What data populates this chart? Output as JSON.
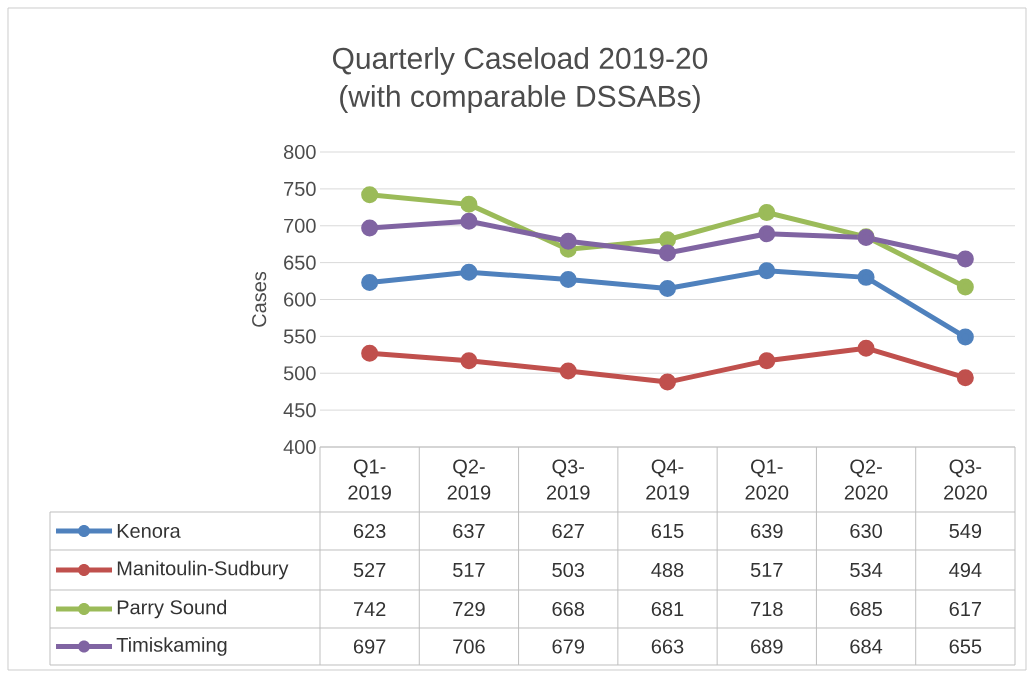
{
  "chart_data": {
    "type": "line",
    "title": "Quarterly Caseload 2019-20",
    "subtitle": "(with comparable DSSABs)",
    "ylabel": "Cases",
    "categories": [
      "Q1-2019",
      "Q2-2019",
      "Q3-2019",
      "Q4-2019",
      "Q1-2020",
      "Q2-2020",
      "Q3-2020"
    ],
    "series": [
      {
        "name": "Kenora",
        "color": "#4f81bd",
        "values": [
          623,
          637,
          627,
          615,
          639,
          630,
          549
        ]
      },
      {
        "name": "Manitoulin-Sudbury",
        "color": "#c0504d",
        "values": [
          527,
          517,
          503,
          488,
          517,
          534,
          494
        ]
      },
      {
        "name": "Parry Sound",
        "color": "#9bbb59",
        "values": [
          742,
          729,
          668,
          681,
          718,
          685,
          617
        ]
      },
      {
        "name": "Timiskaming",
        "color": "#8064a2",
        "values": [
          697,
          706,
          679,
          663,
          689,
          684,
          655
        ]
      }
    ],
    "ylim": [
      400,
      800
    ],
    "yticks": [
      400,
      450,
      500,
      550,
      600,
      650,
      700,
      750,
      800
    ],
    "grid": "y",
    "legend": "bottom",
    "marker": "circle",
    "line_style": "solid",
    "data_labels": true
  }
}
